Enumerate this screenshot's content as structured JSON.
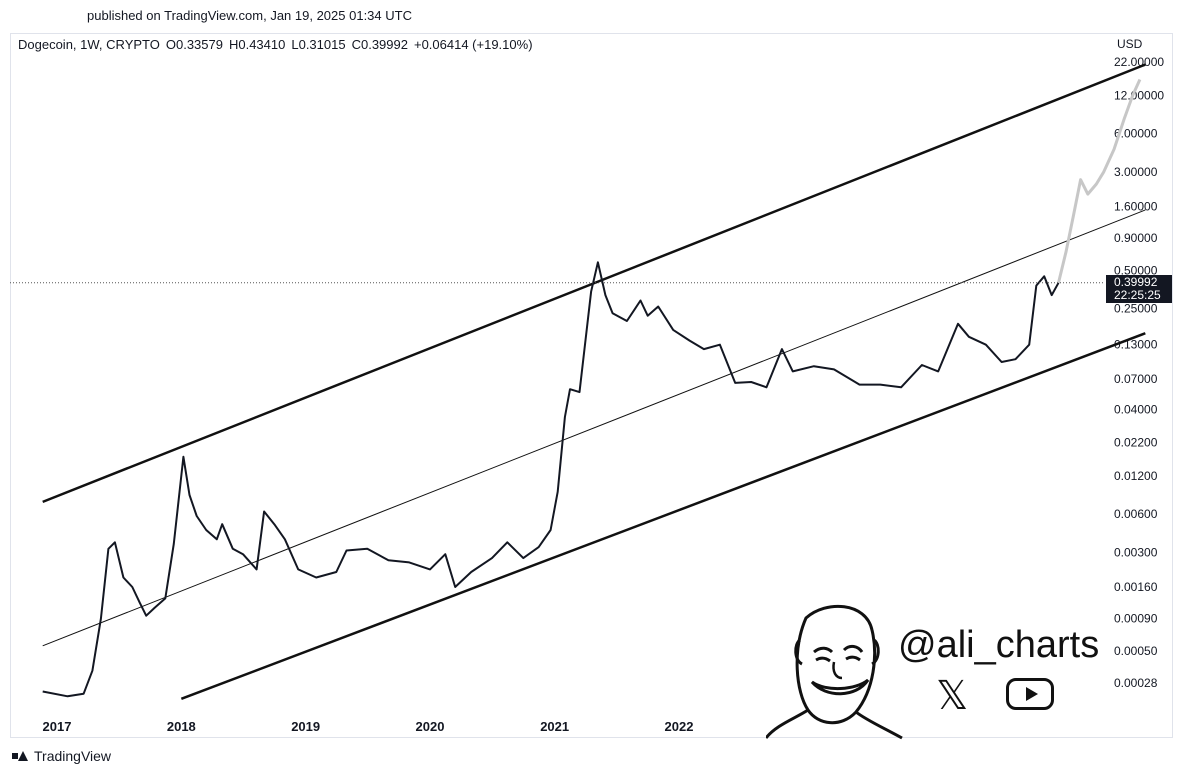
{
  "published": "published on TradingView.com, Jan 19, 2025 01:34 UTC",
  "header": {
    "symbol": "Dogecoin, 1W, CRYPTO",
    "open": "O0.33579",
    "high": "H0.43410",
    "low": "L0.31015",
    "close": "C0.39992",
    "change": "+0.06414 (+19.10%)"
  },
  "currency": "USD",
  "price_tag": {
    "price": "0.39992",
    "countdown": "22:25:25"
  },
  "watermark": {
    "handle": "@ali_charts"
  },
  "footer": {
    "brand": "TradingView"
  },
  "icons": [
    "tradingview-logo-icon",
    "x-logo-icon",
    "youtube-icon",
    "cartoon-face-icon"
  ],
  "colors": {
    "candles": "#131722",
    "projection": "#c7c7c7",
    "background": "#ffffff"
  },
  "chart_data": {
    "type": "line",
    "scale": "log",
    "ylim": [
      0.0002,
      26
    ],
    "xlim": [
      "2016-11-20",
      "2025-10-01"
    ],
    "x_ticks": [
      {
        "date": "2017-01-01",
        "label": "2017"
      },
      {
        "date": "2018-01-01",
        "label": "2018"
      },
      {
        "date": "2019-01-01",
        "label": "2019"
      },
      {
        "date": "2020-01-01",
        "label": "2020"
      },
      {
        "date": "2021-01-01",
        "label": "2021"
      },
      {
        "date": "2022-01-01",
        "label": "2022"
      }
    ],
    "y_ticks": [
      {
        "value": 22,
        "label": "22.00000"
      },
      {
        "value": 12,
        "label": "12.00000"
      },
      {
        "value": 6,
        "label": "6.00000"
      },
      {
        "value": 3,
        "label": "3.00000"
      },
      {
        "value": 1.6,
        "label": "1.60000"
      },
      {
        "value": 0.9,
        "label": "0.90000"
      },
      {
        "value": 0.5,
        "label": "0.50000"
      },
      {
        "value": 0.25,
        "label": "0.25000"
      },
      {
        "value": 0.13,
        "label": "0.13000"
      },
      {
        "value": 0.07,
        "label": "0.07000"
      },
      {
        "value": 0.04,
        "label": "0.04000"
      },
      {
        "value": 0.022,
        "label": "0.02200"
      },
      {
        "value": 0.012,
        "label": "0.01200"
      },
      {
        "value": 0.006,
        "label": "0.00600"
      },
      {
        "value": 0.003,
        "label": "0.00300"
      },
      {
        "value": 0.0016,
        "label": "0.00160"
      },
      {
        "value": 0.0009,
        "label": "0.00090"
      },
      {
        "value": 0.0005,
        "label": "0.00050"
      },
      {
        "value": 0.00028,
        "label": "0.00028"
      }
    ],
    "last_price": 0.39992,
    "series": [
      {
        "values": [
          [
            "2016-11-20",
            0.00024
          ],
          [
            "2017-02-01",
            0.00022
          ],
          [
            "2017-03-20",
            0.00023
          ],
          [
            "2017-04-15",
            0.00035
          ],
          [
            "2017-05-10",
            0.0009
          ],
          [
            "2017-06-01",
            0.0032
          ],
          [
            "2017-06-20",
            0.0036
          ],
          [
            "2017-07-15",
            0.0019
          ],
          [
            "2017-08-10",
            0.0016
          ],
          [
            "2017-09-01",
            0.0012
          ],
          [
            "2017-09-20",
            0.00095
          ],
          [
            "2017-10-15",
            0.0011
          ],
          [
            "2017-11-15",
            0.0013
          ],
          [
            "2017-12-10",
            0.0035
          ],
          [
            "2018-01-07",
            0.017
          ],
          [
            "2018-01-25",
            0.0085
          ],
          [
            "2018-02-15",
            0.0058
          ],
          [
            "2018-03-15",
            0.0045
          ],
          [
            "2018-04-15",
            0.0038
          ],
          [
            "2018-05-01",
            0.005
          ],
          [
            "2018-06-01",
            0.0032
          ],
          [
            "2018-07-01",
            0.0029
          ],
          [
            "2018-08-10",
            0.0022
          ],
          [
            "2018-09-01",
            0.0063
          ],
          [
            "2018-10-01",
            0.005
          ],
          [
            "2018-11-01",
            0.0038
          ],
          [
            "2018-12-10",
            0.0022
          ],
          [
            "2019-02-01",
            0.0019
          ],
          [
            "2019-04-01",
            0.0021
          ],
          [
            "2019-05-01",
            0.0031
          ],
          [
            "2019-07-01",
            0.0032
          ],
          [
            "2019-09-01",
            0.0026
          ],
          [
            "2019-11-01",
            0.0025
          ],
          [
            "2020-01-01",
            0.0022
          ],
          [
            "2020-02-15",
            0.0029
          ],
          [
            "2020-03-15",
            0.0016
          ],
          [
            "2020-05-01",
            0.0021
          ],
          [
            "2020-07-01",
            0.0027
          ],
          [
            "2020-08-15",
            0.0036
          ],
          [
            "2020-10-01",
            0.0027
          ],
          [
            "2020-11-15",
            0.0033
          ],
          [
            "2020-12-20",
            0.0045
          ],
          [
            "2021-01-10",
            0.009
          ],
          [
            "2021-01-31",
            0.035
          ],
          [
            "2021-02-15",
            0.058
          ],
          [
            "2021-03-15",
            0.055
          ],
          [
            "2021-04-18",
            0.34
          ],
          [
            "2021-05-08",
            0.58
          ],
          [
            "2021-05-30",
            0.32
          ],
          [
            "2021-06-20",
            0.23
          ],
          [
            "2021-08-01",
            0.2
          ],
          [
            "2021-09-10",
            0.29
          ],
          [
            "2021-10-01",
            0.22
          ],
          [
            "2021-11-01",
            0.26
          ],
          [
            "2021-12-15",
            0.17
          ],
          [
            "2022-02-01",
            0.14
          ],
          [
            "2022-03-15",
            0.12
          ],
          [
            "2022-05-01",
            0.13
          ],
          [
            "2022-06-15",
            0.065
          ],
          [
            "2022-08-01",
            0.066
          ],
          [
            "2022-09-15",
            0.06
          ],
          [
            "2022-10-30",
            0.12
          ],
          [
            "2022-12-01",
            0.08
          ],
          [
            "2023-02-01",
            0.088
          ],
          [
            "2023-04-01",
            0.083
          ],
          [
            "2023-06-15",
            0.063
          ],
          [
            "2023-08-15",
            0.063
          ],
          [
            "2023-10-15",
            0.06
          ],
          [
            "2023-12-15",
            0.09
          ],
          [
            "2024-02-01",
            0.08
          ],
          [
            "2024-03-30",
            0.19
          ],
          [
            "2024-05-01",
            0.15
          ],
          [
            "2024-06-20",
            0.13
          ],
          [
            "2024-08-05",
            0.095
          ],
          [
            "2024-09-15",
            0.1
          ],
          [
            "2024-10-25",
            0.13
          ],
          [
            "2024-11-15",
            0.38
          ],
          [
            "2024-12-08",
            0.45
          ],
          [
            "2024-12-30",
            0.32
          ],
          [
            "2025-01-19",
            0.39992
          ]
        ]
      },
      {
        "values": [
          [
            "2025-01-19",
            0.39992
          ],
          [
            "2025-02-10",
            0.7
          ],
          [
            "2025-03-05",
            1.4
          ],
          [
            "2025-03-25",
            2.6
          ],
          [
            "2025-04-15",
            2.0
          ],
          [
            "2025-05-10",
            2.4
          ],
          [
            "2025-06-01",
            3.0
          ],
          [
            "2025-07-01",
            4.5
          ],
          [
            "2025-08-01",
            8.0
          ],
          [
            "2025-08-25",
            12.0
          ],
          [
            "2025-09-15",
            16.0
          ]
        ]
      }
    ],
    "channel": {
      "upper": [
        [
          "2016-11-20",
          0.0075
        ],
        [
          "2025-10-01",
          21.0
        ]
      ],
      "middle": [
        [
          "2016-11-20",
          0.00055
        ],
        [
          "2025-10-01",
          1.5
        ]
      ],
      "lower": [
        [
          "2018-01-01",
          0.00021
        ],
        [
          "2025-10-01",
          0.16
        ]
      ]
    }
  }
}
